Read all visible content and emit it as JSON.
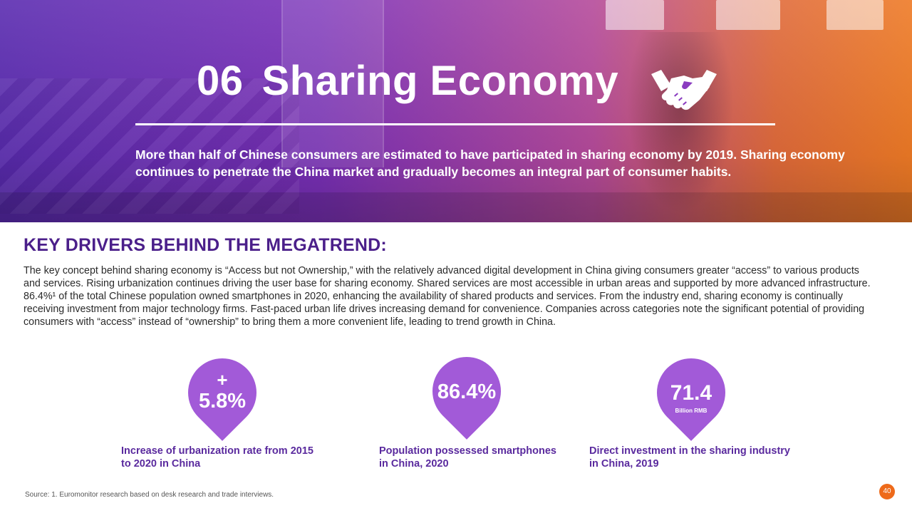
{
  "hero": {
    "number": "06",
    "title": "Sharing Economy",
    "subtitle": "More than half of Chinese consumers are estimated to have participated in sharing economy by 2019. Sharing economy continues to penetrate the China market and gradually becomes an integral part of consumer habits.",
    "icon": "handshake-icon"
  },
  "section": {
    "heading": "KEY DRIVERS BEHIND THE MEGATREND:",
    "paragraph": "The key concept behind sharing economy is “Access but not Ownership,” with the relatively advanced digital development in China giving consumers greater “access” to various products and services. Rising urbanization continues driving the user base for sharing economy. Shared services are most accessible in urban areas and supported by more advanced infrastructure. 86.4%¹ of the total Chinese population owned smartphones in 2020, enhancing the availability of shared products and services. From the industry end, sharing economy is continually receiving investment from major technology firms. Fast-paced urban life drives increasing demand for convenience. Companies across categories note the significant potential of providing consumers with “access” instead of “ownership” to bring them a more convenient life, leading to trend growth in China."
  },
  "stats": [
    {
      "prefix": "+",
      "value": "5.8%",
      "unit": "",
      "label_line1": "Increase of urbanization rate from 2015",
      "label_line2": "to 2020 in China"
    },
    {
      "prefix": "",
      "value": "86.4%",
      "unit": "",
      "label_line1": "Population possessed smartphones",
      "label_line2": "in China, 2020"
    },
    {
      "prefix": "",
      "value": "71.4",
      "unit": "Billion RMB",
      "label_line1": "Direct investment in the sharing industry",
      "label_line2": "in China, 2019"
    }
  ],
  "footer": {
    "source": "Source: 1. Euromonitor research based on desk research and trade interviews.",
    "page": "40"
  },
  "colors": {
    "accent_purple": "#4b1f8a",
    "pin_purple": "#a25ad8",
    "orange": "#ee6a1a"
  }
}
